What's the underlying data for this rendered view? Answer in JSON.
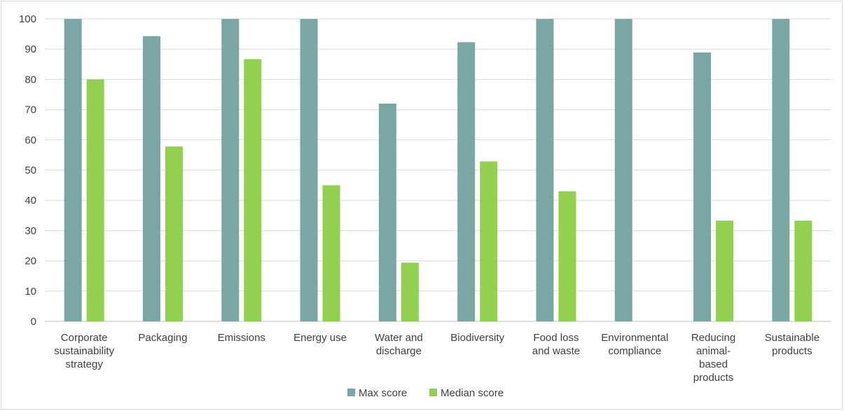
{
  "chart_data": {
    "type": "bar",
    "categories": [
      [
        "Corporate",
        "sustainability",
        "strategy"
      ],
      [
        "Packaging"
      ],
      [
        "Emissions"
      ],
      [
        "Energy use"
      ],
      [
        "Water and",
        "discharge"
      ],
      [
        "Biodiversity"
      ],
      [
        "Food loss",
        "and waste"
      ],
      [
        "Environmental",
        "compliance"
      ],
      [
        "Reducing",
        "animal-",
        "based",
        "products"
      ],
      [
        "Sustainable",
        "products"
      ]
    ],
    "series": [
      {
        "name": "Max score",
        "color": "#7aa6a3",
        "values": [
          100,
          94.3,
          100,
          100,
          72,
          92.3,
          100,
          100,
          88.9,
          100
        ]
      },
      {
        "name": "Median score",
        "color": "#92d050",
        "values": [
          80,
          57.8,
          86.7,
          45,
          19.4,
          52.9,
          43,
          0,
          33.3,
          33.3
        ]
      }
    ],
    "ylim": [
      0,
      100
    ],
    "yticks": [
      "0",
      "10",
      "20",
      "30",
      "40",
      "50",
      "60",
      "70",
      "80",
      "90",
      "100"
    ],
    "grid": true,
    "legend": "bottom-center"
  }
}
